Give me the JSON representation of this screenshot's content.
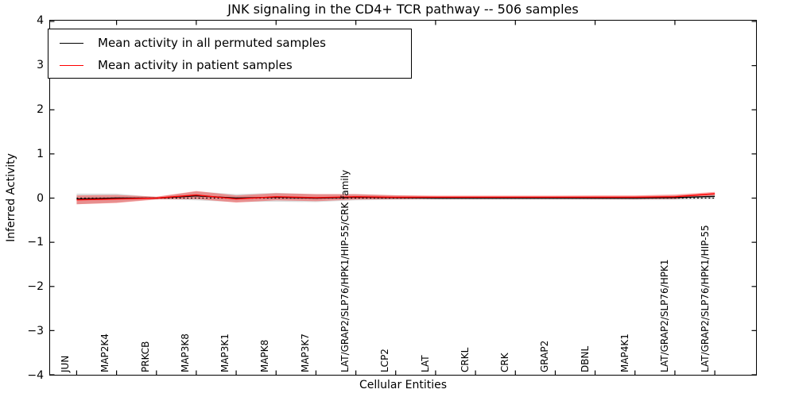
{
  "chart_data": {
    "type": "line",
    "title": "JNK signaling in the CD4+ TCR pathway -- 506 samples",
    "xlabel": "Cellular Entities",
    "ylabel": "Inferred Activity",
    "ylim": [
      -4,
      4
    ],
    "yticks": [
      4,
      3,
      2,
      1,
      0,
      -1,
      -2,
      -3,
      -4
    ],
    "ytick_labels": [
      "4",
      "3",
      "2",
      "1",
      "0",
      "−1",
      "−2",
      "−3",
      "−4"
    ],
    "grid": false,
    "legend_position": "upper left",
    "categories": [
      "JUN",
      "MAP2K4",
      "PRKCB",
      "MAP3K8",
      "MAP3K1",
      "MAPK8",
      "MAP3K7",
      "LAT/GRAP2/SLP76/HPK1/HIP-55/CRK family",
      "LCP2",
      "LAT",
      "CRKL",
      "CRK",
      "GRAP2",
      "DBNL",
      "MAP4K1",
      "LAT/GRAP2/SLP76/HPK1",
      "LAT/GRAP2/SLP76/HPK1/HIP-55"
    ],
    "series": [
      {
        "name": "Mean activity in all permuted samples",
        "color": "#000000",
        "band_color": "rgba(0,0,0,0.14)",
        "values": [
          -0.02,
          0.0,
          0.0,
          0.05,
          0.0,
          0.02,
          0.0,
          0.02,
          0.01,
          0.0,
          0.0,
          0.0,
          0.0,
          0.0,
          0.0,
          0.01,
          0.04
        ],
        "band_halfwidth": [
          0.12,
          0.1,
          0.025,
          0.1,
          0.09,
          0.1,
          0.09,
          0.07,
          0.05,
          0.04,
          0.04,
          0.04,
          0.04,
          0.04,
          0.045,
          0.05,
          0.06
        ]
      },
      {
        "name": "Mean activity in patient samples",
        "color": "#ff0000",
        "band_color": "rgba(255,0,0,0.35)",
        "values": [
          -0.04,
          -0.02,
          0.0,
          0.07,
          -0.02,
          0.03,
          0.01,
          0.03,
          0.02,
          0.02,
          0.02,
          0.02,
          0.02,
          0.02,
          0.02,
          0.03,
          0.1
        ],
        "band_halfwidth": [
          0.1,
          0.09,
          0.03,
          0.09,
          0.08,
          0.08,
          0.08,
          0.06,
          0.045,
          0.035,
          0.035,
          0.035,
          0.035,
          0.04,
          0.04,
          0.05,
          0.04
        ]
      }
    ],
    "reference_line": {
      "value": 0,
      "style": "dotted",
      "color": "#000000"
    }
  }
}
